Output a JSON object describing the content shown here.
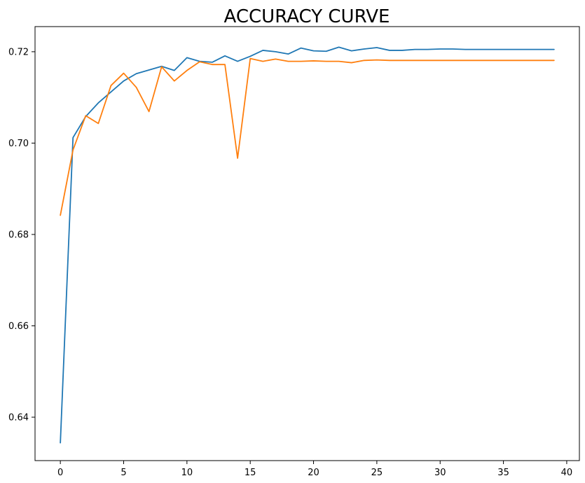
{
  "chart_data": {
    "type": "line",
    "title": "ACCURACY CURVE",
    "xlabel": "",
    "ylabel": "",
    "xlim": [
      -2,
      41
    ],
    "ylim": [
      0.6305,
      0.7255
    ],
    "grid": false,
    "legend": null,
    "x_ticks": [
      0,
      5,
      10,
      15,
      20,
      25,
      30,
      35,
      40
    ],
    "x_tick_labels": [
      "0",
      "5",
      "10",
      "15",
      "20",
      "25",
      "30",
      "35",
      "40"
    ],
    "y_ticks": [
      0.64,
      0.66,
      0.68,
      0.7,
      0.72
    ],
    "y_tick_labels": [
      "0.64",
      "0.66",
      "0.68",
      "0.70",
      "0.72"
    ],
    "x": [
      0,
      1,
      2,
      3,
      4,
      5,
      6,
      7,
      8,
      9,
      10,
      11,
      12,
      13,
      14,
      15,
      16,
      17,
      18,
      19,
      20,
      21,
      22,
      23,
      24,
      25,
      26,
      27,
      28,
      29,
      30,
      31,
      32,
      33,
      34,
      35,
      36,
      37,
      38,
      39
    ],
    "series": [
      {
        "color": "#1f77b4",
        "values": [
          0.6344,
          0.7012,
          0.7058,
          0.7088,
          0.7112,
          0.7136,
          0.7152,
          0.716,
          0.7168,
          0.7159,
          0.7187,
          0.7179,
          0.7177,
          0.7191,
          0.7179,
          0.719,
          0.7203,
          0.72,
          0.7195,
          0.7208,
          0.7202,
          0.7201,
          0.721,
          0.7202,
          0.7206,
          0.7209,
          0.7203,
          0.7203,
          0.7205,
          0.7205,
          0.7206,
          0.7206,
          0.7205,
          0.7205,
          0.7205,
          0.7205,
          0.7205,
          0.7205,
          0.7205,
          0.7205
        ]
      },
      {
        "color": "#ff7f0e",
        "values": [
          0.6842,
          0.6985,
          0.706,
          0.7043,
          0.7126,
          0.7153,
          0.7122,
          0.7069,
          0.7167,
          0.7136,
          0.7159,
          0.7178,
          0.7172,
          0.7172,
          0.6967,
          0.7185,
          0.7179,
          0.7184,
          0.7179,
          0.7179,
          0.718,
          0.7179,
          0.7179,
          0.7176,
          0.7181,
          0.7182,
          0.7181,
          0.7181,
          0.7181,
          0.7181,
          0.7181,
          0.7181,
          0.7181,
          0.7181,
          0.7181,
          0.7181,
          0.7181,
          0.7181,
          0.7181,
          0.7181
        ]
      }
    ]
  }
}
